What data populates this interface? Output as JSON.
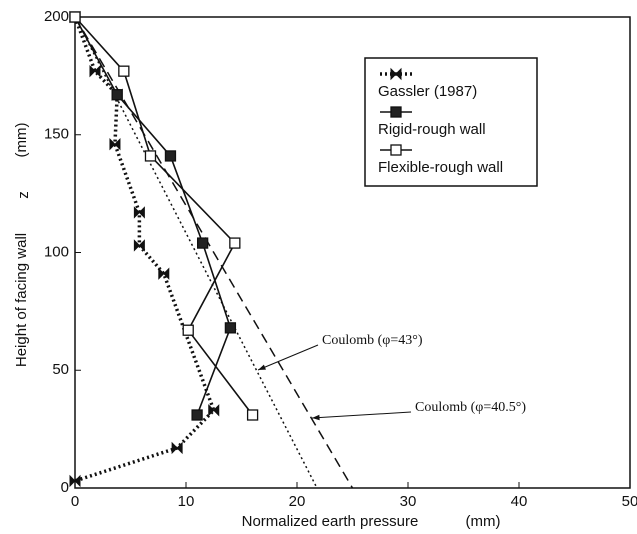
{
  "chart_data": {
    "type": "line",
    "x_label": "Normalized earth pressure",
    "x_unit": "(mm)",
    "y_label": "Height of facing wall",
    "y_symbol": "z",
    "y_unit": "(mm)",
    "xlim": [
      0,
      50
    ],
    "ylim": [
      0,
      200
    ],
    "xticks": [
      0,
      10,
      20,
      30,
      40,
      50
    ],
    "yticks": [
      0,
      50,
      100,
      150,
      200
    ],
    "legend": "upper-right",
    "series": [
      {
        "name": "Gassler (1987)",
        "color": "#111",
        "marker": "bowtie",
        "style": "dotted",
        "x": [
          0,
          1.8,
          3.8,
          3.6,
          5.8,
          5.8,
          8,
          12.5,
          9.2,
          0
        ],
        "values": [
          200,
          177,
          167,
          146,
          117,
          103,
          91,
          33,
          17,
          3
        ]
      },
      {
        "name": "Rigid-rough wall",
        "color": "#111",
        "marker": "filled-square",
        "style": "solid",
        "x": [
          0,
          3.8,
          8.6,
          11.5,
          14,
          11
        ],
        "values": [
          200,
          167,
          141,
          104,
          68,
          31
        ]
      },
      {
        "name": "Flexible-rough wall",
        "color": "#111",
        "marker": "open-square",
        "style": "solid",
        "x": [
          0,
          4.4,
          6.8,
          14.4,
          10.2,
          16
        ],
        "values": [
          200,
          177,
          141,
          104,
          67,
          31
        ]
      }
    ],
    "reference_lines": [
      {
        "label": "Coulomb (φ=43°)",
        "style": "dotted",
        "x": [
          0,
          21.8
        ],
        "y": [
          200,
          0
        ]
      },
      {
        "label": "Coulomb (φ=40.5°)",
        "style": "dashed",
        "x": [
          0,
          25
        ],
        "y": [
          200,
          0
        ]
      }
    ]
  }
}
